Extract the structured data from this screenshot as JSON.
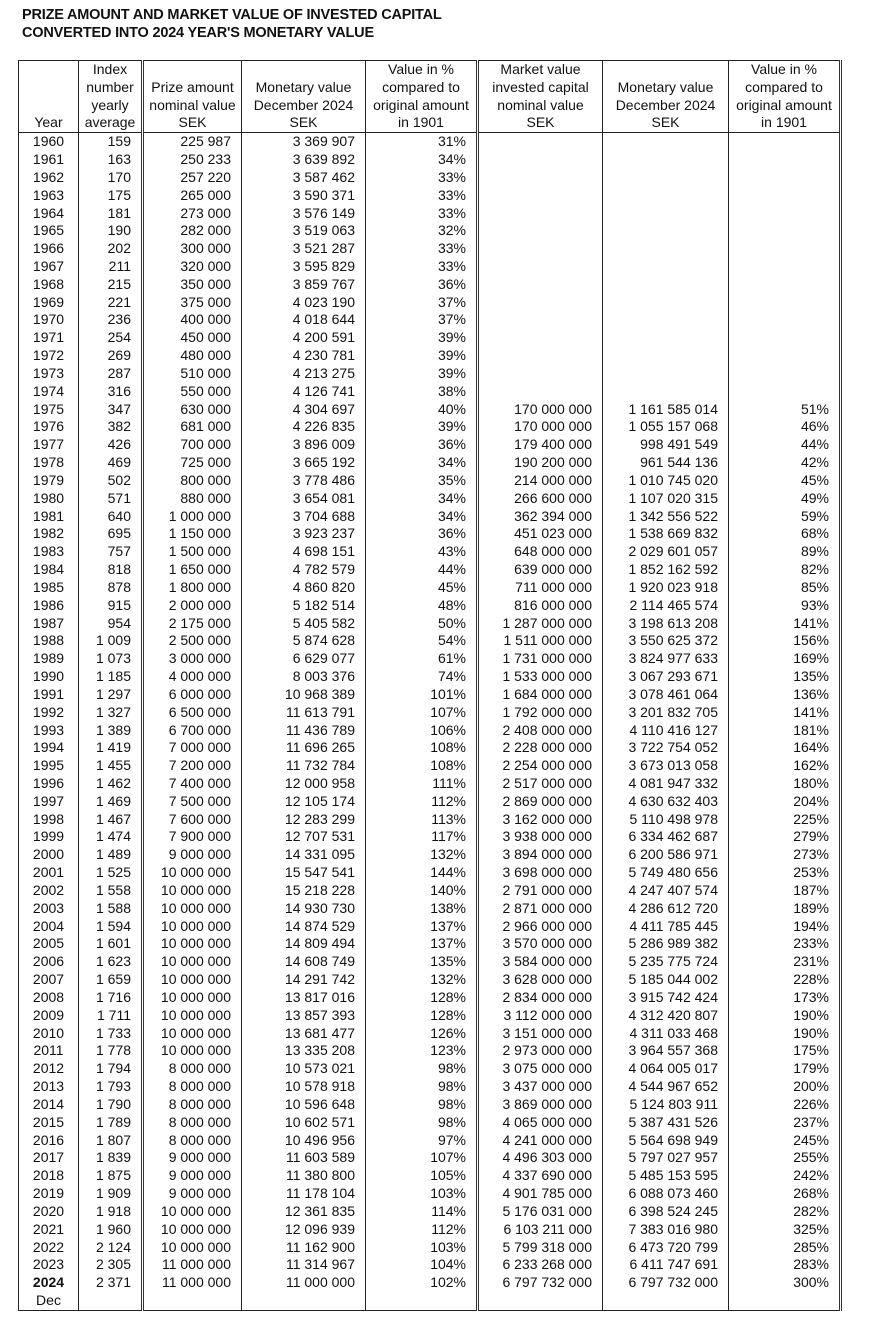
{
  "title": {
    "line1": "PRIZE AMOUNT AND MARKET VALUE OF INVESTED CAPITAL",
    "line2": "CONVERTED INTO 2024 YEAR'S MONETARY VALUE"
  },
  "headers": [
    [
      "Year"
    ],
    [
      "Index",
      "number",
      "yearly",
      "average"
    ],
    [
      "Prize amount",
      "nominal value",
      "SEK"
    ],
    [
      "Monetary value",
      "December 2024",
      "SEK"
    ],
    [
      "Value in %",
      "compared to",
      "original amount",
      "in 1901"
    ],
    [
      "Market value",
      "invested capital",
      "nominal value",
      "SEK"
    ],
    [
      "Monetary value",
      "December 2024",
      "SEK"
    ],
    [
      "Value in %",
      "compared to",
      "original amount",
      "in 1901"
    ]
  ],
  "rows": [
    [
      "1960",
      "159",
      "225 987",
      "3 369 907",
      "31%",
      "",
      "",
      ""
    ],
    [
      "1961",
      "163",
      "250 233",
      "3 639 892",
      "34%",
      "",
      "",
      ""
    ],
    [
      "1962",
      "170",
      "257 220",
      "3 587 462",
      "33%",
      "",
      "",
      ""
    ],
    [
      "1963",
      "175",
      "265 000",
      "3 590 371",
      "33%",
      "",
      "",
      ""
    ],
    [
      "1964",
      "181",
      "273 000",
      "3 576 149",
      "33%",
      "",
      "",
      ""
    ],
    [
      "1965",
      "190",
      "282 000",
      "3 519 063",
      "32%",
      "",
      "",
      ""
    ],
    [
      "1966",
      "202",
      "300 000",
      "3 521 287",
      "33%",
      "",
      "",
      ""
    ],
    [
      "1967",
      "211",
      "320 000",
      "3 595 829",
      "33%",
      "",
      "",
      ""
    ],
    [
      "1968",
      "215",
      "350 000",
      "3 859 767",
      "36%",
      "",
      "",
      ""
    ],
    [
      "1969",
      "221",
      "375 000",
      "4 023 190",
      "37%",
      "",
      "",
      ""
    ],
    [
      "1970",
      "236",
      "400 000",
      "4 018 644",
      "37%",
      "",
      "",
      ""
    ],
    [
      "1971",
      "254",
      "450 000",
      "4 200 591",
      "39%",
      "",
      "",
      ""
    ],
    [
      "1972",
      "269",
      "480 000",
      "4 230 781",
      "39%",
      "",
      "",
      ""
    ],
    [
      "1973",
      "287",
      "510 000",
      "4 213 275",
      "39%",
      "",
      "",
      ""
    ],
    [
      "1974",
      "316",
      "550 000",
      "4 126 741",
      "38%",
      "",
      "",
      ""
    ],
    [
      "1975",
      "347",
      "630 000",
      "4 304 697",
      "40%",
      "170 000 000",
      "1 161 585 014",
      "51%"
    ],
    [
      "1976",
      "382",
      "681 000",
      "4 226 835",
      "39%",
      "170 000 000",
      "1 055 157 068",
      "46%"
    ],
    [
      "1977",
      "426",
      "700 000",
      "3 896 009",
      "36%",
      "179 400 000",
      "998 491 549",
      "44%"
    ],
    [
      "1978",
      "469",
      "725 000",
      "3 665 192",
      "34%",
      "190 200 000",
      "961 544 136",
      "42%"
    ],
    [
      "1979",
      "502",
      "800 000",
      "3 778 486",
      "35%",
      "214 000 000",
      "1 010 745 020",
      "45%"
    ],
    [
      "1980",
      "571",
      "880 000",
      "3 654 081",
      "34%",
      "266 600 000",
      "1 107 020 315",
      "49%"
    ],
    [
      "1981",
      "640",
      "1 000 000",
      "3 704 688",
      "34%",
      "362 394 000",
      "1 342 556 522",
      "59%"
    ],
    [
      "1982",
      "695",
      "1 150 000",
      "3 923 237",
      "36%",
      "451 023 000",
      "1 538 669 832",
      "68%"
    ],
    [
      "1983",
      "757",
      "1 500 000",
      "4 698 151",
      "43%",
      "648 000 000",
      "2 029 601 057",
      "89%"
    ],
    [
      "1984",
      "818",
      "1 650 000",
      "4 782 579",
      "44%",
      "639 000 000",
      "1 852 162 592",
      "82%"
    ],
    [
      "1985",
      "878",
      "1 800 000",
      "4 860 820",
      "45%",
      "711 000 000",
      "1 920 023 918",
      "85%"
    ],
    [
      "1986",
      "915",
      "2 000 000",
      "5 182 514",
      "48%",
      "816 000 000",
      "2 114 465 574",
      "93%"
    ],
    [
      "1987",
      "954",
      "2 175 000",
      "5 405 582",
      "50%",
      "1 287 000 000",
      "3 198 613 208",
      "141%"
    ],
    [
      "1988",
      "1 009",
      "2 500 000",
      "5 874 628",
      "54%",
      "1 511 000 000",
      "3 550 625 372",
      "156%"
    ],
    [
      "1989",
      "1 073",
      "3 000 000",
      "6 629 077",
      "61%",
      "1 731 000 000",
      "3 824 977 633",
      "169%"
    ],
    [
      "1990",
      "1 185",
      "4 000 000",
      "8 003 376",
      "74%",
      "1 533 000 000",
      "3 067 293 671",
      "135%"
    ],
    [
      "1991",
      "1 297",
      "6 000 000",
      "10 968 389",
      "101%",
      "1 684 000 000",
      "3 078 461 064",
      "136%"
    ],
    [
      "1992",
      "1 327",
      "6 500 000",
      "11 613 791",
      "107%",
      "1 792 000 000",
      "3 201 832 705",
      "141%"
    ],
    [
      "1993",
      "1 389",
      "6 700 000",
      "11 436 789",
      "106%",
      "2 408 000 000",
      "4 110 416 127",
      "181%"
    ],
    [
      "1994",
      "1 419",
      "7 000 000",
      "11 696 265",
      "108%",
      "2 228 000 000",
      "3 722 754 052",
      "164%"
    ],
    [
      "1995",
      "1 455",
      "7 200 000",
      "11 732 784",
      "108%",
      "2 254 000 000",
      "3 673 013 058",
      "162%"
    ],
    [
      "1996",
      "1 462",
      "7 400 000",
      "12 000 958",
      "111%",
      "2 517 000 000",
      "4 081 947 332",
      "180%"
    ],
    [
      "1997",
      "1 469",
      "7 500 000",
      "12 105 174",
      "112%",
      "2 869 000 000",
      "4 630 632 403",
      "204%"
    ],
    [
      "1998",
      "1 467",
      "7 600 000",
      "12 283 299",
      "113%",
      "3 162 000 000",
      "5 110 498 978",
      "225%"
    ],
    [
      "1999",
      "1 474",
      "7 900 000",
      "12 707 531",
      "117%",
      "3 938 000 000",
      "6 334 462 687",
      "279%"
    ],
    [
      "2000",
      "1 489",
      "9 000 000",
      "14 331 095",
      "132%",
      "3 894 000 000",
      "6 200 586 971",
      "273%"
    ],
    [
      "2001",
      "1 525",
      "10 000 000",
      "15 547 541",
      "144%",
      "3 698 000 000",
      "5 749 480 656",
      "253%"
    ],
    [
      "2002",
      "1 558",
      "10 000 000",
      "15 218 228",
      "140%",
      "2 791 000 000",
      "4 247 407 574",
      "187%"
    ],
    [
      "2003",
      "1 588",
      "10 000 000",
      "14 930 730",
      "138%",
      "2 871 000 000",
      "4 286 612 720",
      "189%"
    ],
    [
      "2004",
      "1 594",
      "10 000 000",
      "14 874 529",
      "137%",
      "2 966 000 000",
      "4 411 785 445",
      "194%"
    ],
    [
      "2005",
      "1 601",
      "10 000 000",
      "14 809 494",
      "137%",
      "3 570 000 000",
      "5 286 989 382",
      "233%"
    ],
    [
      "2006",
      "1 623",
      "10 000 000",
      "14 608 749",
      "135%",
      "3 584 000 000",
      "5 235 775 724",
      "231%"
    ],
    [
      "2007",
      "1 659",
      "10 000 000",
      "14 291 742",
      "132%",
      "3 628 000 000",
      "5 185 044 002",
      "228%"
    ],
    [
      "2008",
      "1 716",
      "10 000 000",
      "13 817 016",
      "128%",
      "2 834 000 000",
      "3 915 742 424",
      "173%"
    ],
    [
      "2009",
      "1 711",
      "10 000 000",
      "13 857 393",
      "128%",
      "3 112 000 000",
      "4 312 420 807",
      "190%"
    ],
    [
      "2010",
      "1 733",
      "10 000 000",
      "13 681 477",
      "126%",
      "3 151 000 000",
      "4 311 033 468",
      "190%"
    ],
    [
      "2011",
      "1 778",
      "10 000 000",
      "13 335 208",
      "123%",
      "2 973 000 000",
      "3 964 557 368",
      "175%"
    ],
    [
      "2012",
      "1 794",
      "8 000 000",
      "10 573 021",
      "98%",
      "3 075 000 000",
      "4 064 005 017",
      "179%"
    ],
    [
      "2013",
      "1 793",
      "8 000 000",
      "10 578 918",
      "98%",
      "3 437 000 000",
      "4 544 967 652",
      "200%"
    ],
    [
      "2014",
      "1 790",
      "8 000 000",
      "10 596 648",
      "98%",
      "3 869 000 000",
      "5 124 803 911",
      "226%"
    ],
    [
      "2015",
      "1 789",
      "8 000 000",
      "10 602 571",
      "98%",
      "4 065 000 000",
      "5 387 431 526",
      "237%"
    ],
    [
      "2016",
      "1 807",
      "8 000 000",
      "10 496 956",
      "97%",
      "4 241 000 000",
      "5 564 698 949",
      "245%"
    ],
    [
      "2017",
      "1 839",
      "9 000 000",
      "11 603 589",
      "107%",
      "4 496 303 000",
      "5 797 027 957",
      "255%"
    ],
    [
      "2018",
      "1 875",
      "9 000 000",
      "11 380 800",
      "105%",
      "4 337 690 000",
      "5 485 153 595",
      "242%"
    ],
    [
      "2019",
      "1 909",
      "9 000 000",
      "11 178 104",
      "103%",
      "4 901 785 000",
      "6 088 073 460",
      "268%"
    ],
    [
      "2020",
      "1 918",
      "10 000 000",
      "12 361 835",
      "114%",
      "5 176 031 000",
      "6 398 524 245",
      "282%"
    ],
    [
      "2021",
      "1 960",
      "10 000 000",
      "12 096 939",
      "112%",
      "6 103 211 000",
      "7 383 016 980",
      "325%"
    ],
    [
      "2022",
      "2 124",
      "10 000 000",
      "11 162 900",
      "103%",
      "5 799 318 000",
      "6 473 720 799",
      "285%"
    ],
    [
      "2023",
      "2 305",
      "11 000 000",
      "11 314 967",
      "104%",
      "6 233 268 000",
      "6 411 747 691",
      "283%"
    ],
    [
      "2024",
      "2 371",
      "11 000 000",
      "11 000 000",
      "102%",
      "6 797 732 000",
      "6 797 732 000",
      "300%"
    ],
    [
      "Dec",
      "",
      "",
      "",
      "",
      "",
      "",
      ""
    ]
  ]
}
